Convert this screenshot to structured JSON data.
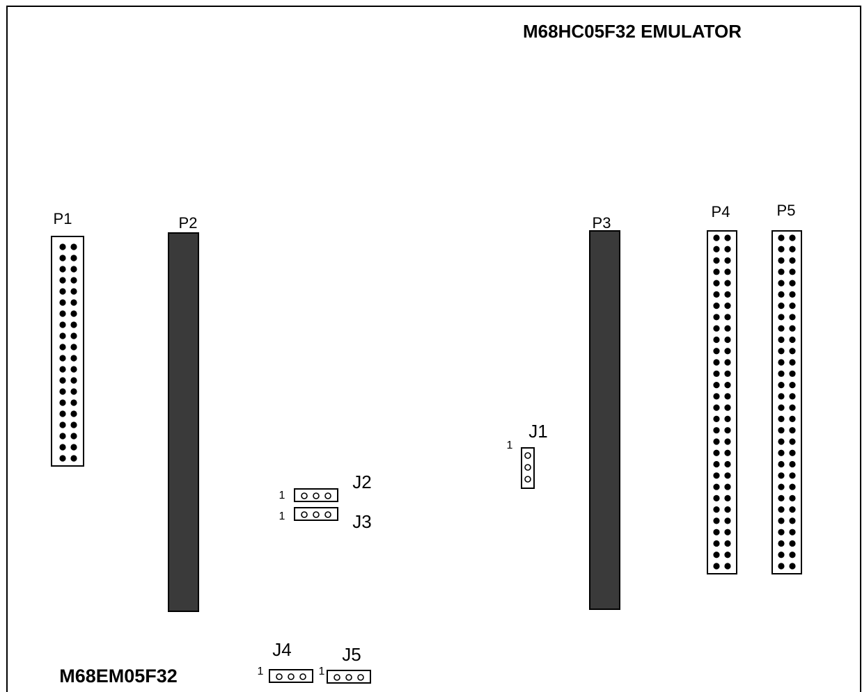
{
  "board": {
    "title": "M68HC05F32 EMULATOR",
    "part_number": "M68EM05F32"
  },
  "colors": {
    "outline": "#000000",
    "connector_fill": "#3a3a3a",
    "background": "#ffffff"
  },
  "connectors": {
    "p1": {
      "label": "P1",
      "pin_rows": 20,
      "pin_cols": 2
    },
    "p2": {
      "label": "P2"
    },
    "p3": {
      "label": "P3"
    },
    "p4": {
      "label": "P4",
      "pin_rows": 30,
      "pin_cols": 2
    },
    "p5": {
      "label": "P5",
      "pin_rows": 30,
      "pin_cols": 2
    }
  },
  "jumpers": {
    "j1": {
      "label": "J1",
      "pin1_marker": "1",
      "pins": 3,
      "orientation": "vertical"
    },
    "j2": {
      "label": "J2",
      "pin1_marker": "1",
      "pins": 3,
      "orientation": "horizontal"
    },
    "j3": {
      "label": "J3",
      "pin1_marker": "1",
      "pins": 3,
      "orientation": "horizontal"
    },
    "j4": {
      "label": "J4",
      "pin1_marker": "1",
      "pins": 3,
      "orientation": "horizontal"
    },
    "j5": {
      "label": "J5",
      "pin1_marker": "1",
      "pins": 3,
      "orientation": "horizontal"
    }
  }
}
